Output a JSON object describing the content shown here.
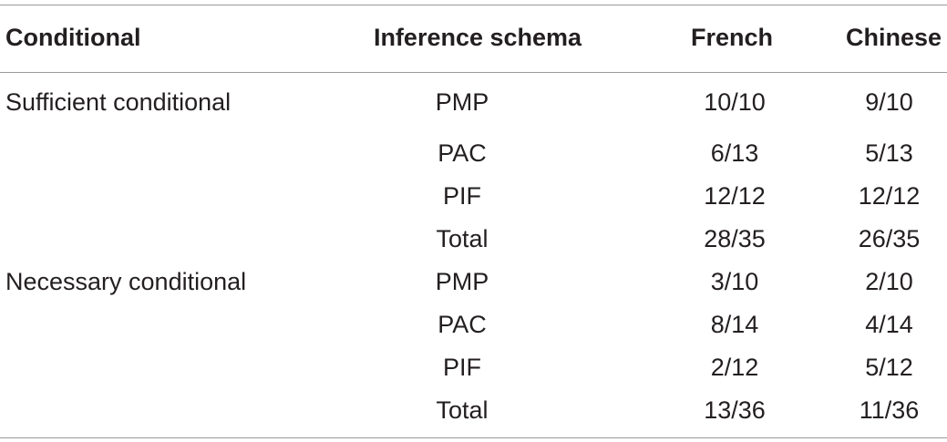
{
  "table": {
    "headers": {
      "conditional": "Conditional",
      "schema": "Inference schema",
      "french": "French",
      "chinese": "Chinese"
    },
    "rows": [
      {
        "conditional": "Sufficient conditional",
        "schema": "PMP",
        "french": "10/10",
        "chinese": "9/10"
      },
      {
        "conditional": "",
        "schema": "PAC",
        "french": "6/13",
        "chinese": "5/13"
      },
      {
        "conditional": "",
        "schema": "PIF",
        "french": "12/12",
        "chinese": "12/12"
      },
      {
        "conditional": "",
        "schema": "Total",
        "french": "28/35",
        "chinese": "26/35"
      },
      {
        "conditional": "Necessary conditional",
        "schema": "PMP",
        "french": "3/10",
        "chinese": "2/10"
      },
      {
        "conditional": "",
        "schema": "PAC",
        "french": "8/14",
        "chinese": "4/14"
      },
      {
        "conditional": "",
        "schema": "PIF",
        "french": "2/12",
        "chinese": "5/12"
      },
      {
        "conditional": "",
        "schema": "Total",
        "french": "13/36",
        "chinese": "11/36"
      }
    ]
  }
}
